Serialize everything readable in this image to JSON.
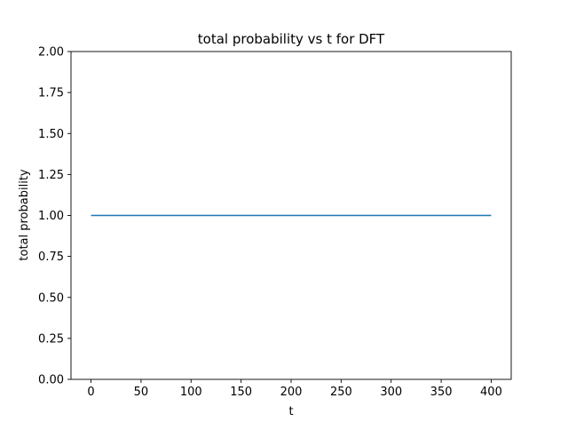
{
  "chart_data": {
    "type": "line",
    "title": "total probability vs t for DFT",
    "xlabel": "t",
    "ylabel": "total probability",
    "xlim": [
      -20,
      420
    ],
    "ylim": [
      0.0,
      2.0
    ],
    "xticks": [
      0,
      50,
      100,
      150,
      200,
      250,
      300,
      350,
      400
    ],
    "xtick_labels": [
      "0",
      "50",
      "100",
      "150",
      "200",
      "250",
      "300",
      "350",
      "400"
    ],
    "yticks": [
      0.0,
      0.25,
      0.5,
      0.75,
      1.0,
      1.25,
      1.5,
      1.75,
      2.0
    ],
    "ytick_labels": [
      "0.00",
      "0.25",
      "0.50",
      "0.75",
      "1.00",
      "1.25",
      "1.50",
      "1.75",
      "2.00"
    ],
    "grid": false,
    "series": [
      {
        "color": "#1f77b4",
        "x": [
          0,
          50,
          100,
          150,
          200,
          250,
          300,
          350,
          400
        ],
        "y": [
          1.0,
          1.0,
          1.0,
          1.0,
          1.0,
          1.0,
          1.0,
          1.0,
          1.0
        ]
      }
    ]
  }
}
